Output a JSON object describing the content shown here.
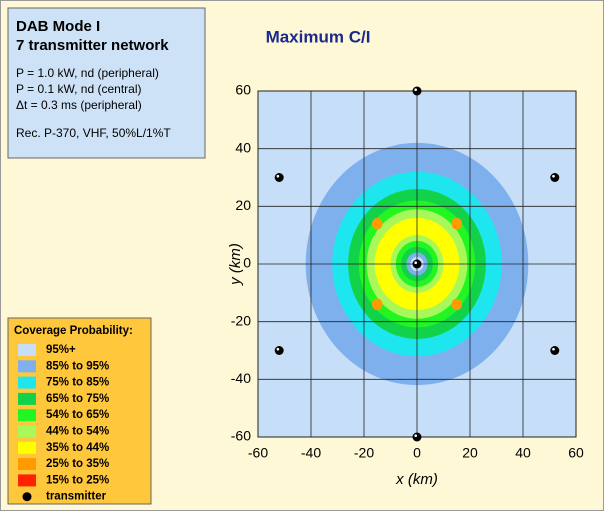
{
  "chart_data": {
    "type": "scatter",
    "title": "Maximum C/I",
    "xlabel": "x (km)",
    "ylabel": "y (km)",
    "xlim": [
      -60,
      60
    ],
    "ylim": [
      -60,
      60
    ],
    "xticks": [
      -60,
      -40,
      -20,
      0,
      20,
      40,
      60
    ],
    "yticks": [
      -60,
      -40,
      -20,
      0,
      20,
      40,
      60
    ],
    "grid": true,
    "info": {
      "heading": [
        "DAB Mode I",
        "7 transmitter network"
      ],
      "lines": [
        "P = 1.0 kW, nd (peripheral)",
        "P = 0.1 kW, nd (central)",
        "Δt = 0.3 ms (peripheral)"
      ],
      "note": "Rec. P-370, VHF, 50%L/1%T"
    },
    "legend": {
      "title": "Coverage Probability:",
      "entries": [
        {
          "label": "95%+",
          "color": "#c6def7"
        },
        {
          "label": "85% to 95%",
          "color": "#7fb0ee"
        },
        {
          "label": "75% to 85%",
          "color": "#1ee6ee"
        },
        {
          "label": "65% to 75%",
          "color": "#12d24a"
        },
        {
          "label": "54% to 65%",
          "color": "#22f622"
        },
        {
          "label": "44% to 54%",
          "color": "#a8f85a"
        },
        {
          "label": "35% to 44%",
          "color": "#ffff00"
        },
        {
          "label": "25% to 35%",
          "color": "#ff9a00"
        },
        {
          "label": "15% to 25%",
          "color": "#ff2200"
        }
      ]
    },
    "coverage_zones": [
      {
        "level": 1,
        "radius": 42
      },
      {
        "level": 2,
        "radius": 32
      },
      {
        "level": 3,
        "radius": 26
      },
      {
        "level": 4,
        "radius": 22
      },
      {
        "level": 5,
        "radius": 19
      },
      {
        "level": 6,
        "radius": 16
      },
      {
        "level": 5,
        "radius": 10
      },
      {
        "level": 4,
        "radius": 8
      },
      {
        "level": 3,
        "radius": 6
      },
      {
        "level": 1,
        "radius": 4
      },
      {
        "level": 0,
        "radius": 2.5
      }
    ],
    "spots": [
      {
        "level": 7,
        "x": -15,
        "y": 14
      },
      {
        "level": 7,
        "x": 15,
        "y": 14
      },
      {
        "level": 7,
        "x": -15,
        "y": -14
      },
      {
        "level": 7,
        "x": 15,
        "y": -14
      }
    ],
    "series": [
      {
        "name": "transmitter",
        "color": "#000000",
        "x": [
          0,
          0,
          0,
          -52,
          52,
          -52,
          52
        ],
        "values": [
          60,
          0,
          -60,
          30,
          30,
          -30,
          -30
        ]
      }
    ]
  }
}
